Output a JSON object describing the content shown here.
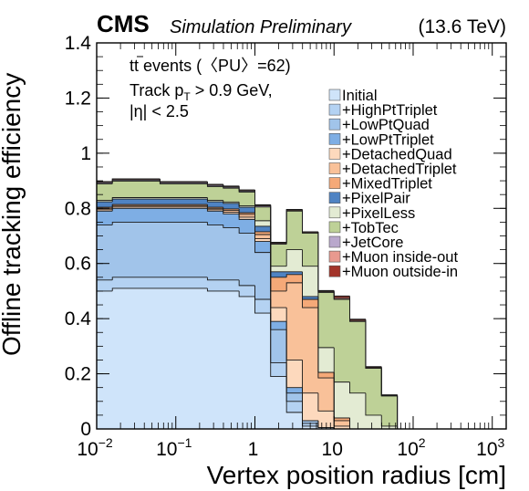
{
  "header": {
    "experiment": "CMS",
    "status": "Simulation Preliminary",
    "energy": "(13.6 TeV)"
  },
  "annotations": {
    "line1_prefix": "t",
    "line1_bar": "t",
    "line1_rest": " events (〈PU〉=62)",
    "line2_prefix": "Track p",
    "line2_sub": "T",
    "line2_rest": " > 0.9 GeV,",
    "line3": "|η| < 2.5"
  },
  "chart_data": {
    "type": "area",
    "title": "",
    "xlabel": "Vertex position radius [cm]",
    "ylabel": "Offline tracking efficiency",
    "xscale": "log",
    "xlim": [
      0.01,
      1500
    ],
    "ylim": [
      0,
      1.4
    ],
    "xticks": [
      {
        "value": 0.01,
        "base": "10",
        "exp": "−2"
      },
      {
        "value": 0.1,
        "base": "10",
        "exp": "−1"
      },
      {
        "value": 1,
        "base": "1",
        "exp": ""
      },
      {
        "value": 10,
        "base": "10",
        "exp": ""
      },
      {
        "value": 100,
        "base": "10",
        "exp": "2"
      },
      {
        "value": 1000,
        "base": "10",
        "exp": "3"
      }
    ],
    "yticks": [
      {
        "value": 0,
        "label": "0"
      },
      {
        "value": 0.2,
        "label": "0.2"
      },
      {
        "value": 0.4,
        "label": "0.4"
      },
      {
        "value": 0.6,
        "label": "0.6"
      },
      {
        "value": 0.8,
        "label": "0.8"
      },
      {
        "value": 1.0,
        "label": "1"
      },
      {
        "value": 1.2,
        "label": "1.2"
      },
      {
        "value": 1.4,
        "label": "1.4"
      }
    ],
    "grid": false,
    "stacked": true,
    "legend_position": "top-right",
    "bin_edges": [
      0.01,
      0.0158,
      0.0251,
      0.0398,
      0.0631,
      0.1,
      0.158,
      0.251,
      0.398,
      0.631,
      1.0,
      1.58,
      2.51,
      3.98,
      6.31,
      10.0,
      15.8,
      25.1,
      39.8,
      63.1,
      100,
      158,
      251,
      398,
      631,
      1000
    ],
    "series": [
      {
        "name": "Initial",
        "color": "#cfe4fa",
        "values": [
          0.5,
          0.51,
          0.51,
          0.51,
          0.51,
          0.51,
          0.51,
          0.5,
          0.5,
          0.48,
          0.42,
          0.19,
          0.06,
          0.01,
          0.005,
          0,
          0,
          0,
          0,
          0,
          0,
          0,
          0,
          0,
          0
        ]
      },
      {
        "name": "+HighPtTriplet",
        "color": "#b4d2f2",
        "values": [
          0.04,
          0.04,
          0.04,
          0.04,
          0.04,
          0.04,
          0.04,
          0.04,
          0.04,
          0.04,
          0.05,
          0.05,
          0.04,
          0.01,
          0,
          0,
          0,
          0,
          0,
          0,
          0,
          0,
          0,
          0,
          0
        ]
      },
      {
        "name": "+LowPtQuad",
        "color": "#a1c4ea",
        "values": [
          0.2,
          0.2,
          0.2,
          0.2,
          0.2,
          0.2,
          0.2,
          0.2,
          0.19,
          0.19,
          0.17,
          0.12,
          0.03,
          0.01,
          0,
          0,
          0,
          0,
          0,
          0,
          0,
          0,
          0,
          0,
          0
        ]
      },
      {
        "name": "+LowPtTriplet",
        "color": "#7eaee4",
        "values": [
          0.05,
          0.05,
          0.05,
          0.05,
          0.05,
          0.05,
          0.05,
          0.05,
          0.05,
          0.05,
          0.04,
          0.03,
          0.02,
          0,
          0,
          0,
          0,
          0,
          0,
          0,
          0,
          0,
          0,
          0,
          0
        ]
      },
      {
        "name": "+DetachedQuad",
        "color": "#fdd9bd",
        "values": [
          0.005,
          0.005,
          0.005,
          0.005,
          0.005,
          0.005,
          0.005,
          0.005,
          0.006,
          0.008,
          0.01,
          0.05,
          0.1,
          0.1,
          0.06,
          0.01,
          0,
          0,
          0,
          0,
          0,
          0,
          0,
          0,
          0
        ]
      },
      {
        "name": "+DetachedTriplet",
        "color": "#f9c199",
        "values": [
          0.005,
          0.005,
          0.005,
          0.005,
          0.005,
          0.005,
          0.005,
          0.005,
          0.007,
          0.01,
          0.015,
          0.06,
          0.28,
          0.31,
          0.12,
          0.02,
          0,
          0,
          0,
          0,
          0,
          0,
          0,
          0,
          0
        ]
      },
      {
        "name": "+MixedTriplet",
        "color": "#f5a978",
        "values": [
          0.004,
          0.004,
          0.004,
          0.004,
          0.004,
          0.004,
          0.004,
          0.004,
          0.005,
          0.006,
          0.01,
          0.05,
          0.03,
          0.03,
          0.02,
          0.01,
          0,
          0,
          0,
          0,
          0,
          0,
          0,
          0,
          0
        ]
      },
      {
        "name": "+PixelPair",
        "color": "#4f83c3",
        "values": [
          0.02,
          0.02,
          0.02,
          0.02,
          0.02,
          0.02,
          0.02,
          0.02,
          0.02,
          0.02,
          0.02,
          0.02,
          0.01,
          0.01,
          0,
          0,
          0,
          0,
          0,
          0,
          0,
          0,
          0,
          0,
          0
        ]
      },
      {
        "name": "+PixelLess",
        "color": "#e3ebd3",
        "values": [
          0.005,
          0.005,
          0.005,
          0.005,
          0.005,
          0.005,
          0.005,
          0.005,
          0.005,
          0.005,
          0.02,
          0.02,
          0.08,
          0.11,
          0.09,
          0.13,
          0.13,
          0.05,
          0.01,
          0,
          0,
          0,
          0,
          0,
          0
        ]
      },
      {
        "name": "+TobTec",
        "color": "#bed197",
        "values": [
          0.06,
          0.06,
          0.06,
          0.06,
          0.05,
          0.05,
          0.05,
          0.05,
          0.05,
          0.05,
          0.05,
          0.08,
          0.14,
          0.12,
          0.2,
          0.3,
          0.26,
          0.17,
          0.11,
          0,
          0,
          0,
          0,
          0,
          0
        ]
      },
      {
        "name": "+JetCore",
        "color": "#b9a8cc",
        "values": [
          0.004,
          0.004,
          0.004,
          0.004,
          0.004,
          0.004,
          0.004,
          0.004,
          0.004,
          0.004,
          0.004,
          0.003,
          0.002,
          0.001,
          0.002,
          0.001,
          0,
          0,
          0,
          0,
          0,
          0,
          0,
          0,
          0
        ]
      },
      {
        "name": "+Muon inside-out",
        "color": "#e8998f",
        "values": [
          0.003,
          0.003,
          0.003,
          0.003,
          0.003,
          0.003,
          0.003,
          0.003,
          0.003,
          0.003,
          0.003,
          0.003,
          0.003,
          0.003,
          0.003,
          0.005,
          0.004,
          0.003,
          0.002,
          0,
          0,
          0,
          0,
          0,
          0
        ]
      },
      {
        "name": "+Muon outside-in",
        "color": "#a3342a",
        "values": [
          0.001,
          0.001,
          0.001,
          0.001,
          0.001,
          0.001,
          0.001,
          0.001,
          0.001,
          0.001,
          0.001,
          0.001,
          0.001,
          0.001,
          0.002,
          0.006,
          0.004,
          0.003,
          0.002,
          0,
          0,
          0,
          0,
          0,
          0
        ]
      }
    ]
  }
}
